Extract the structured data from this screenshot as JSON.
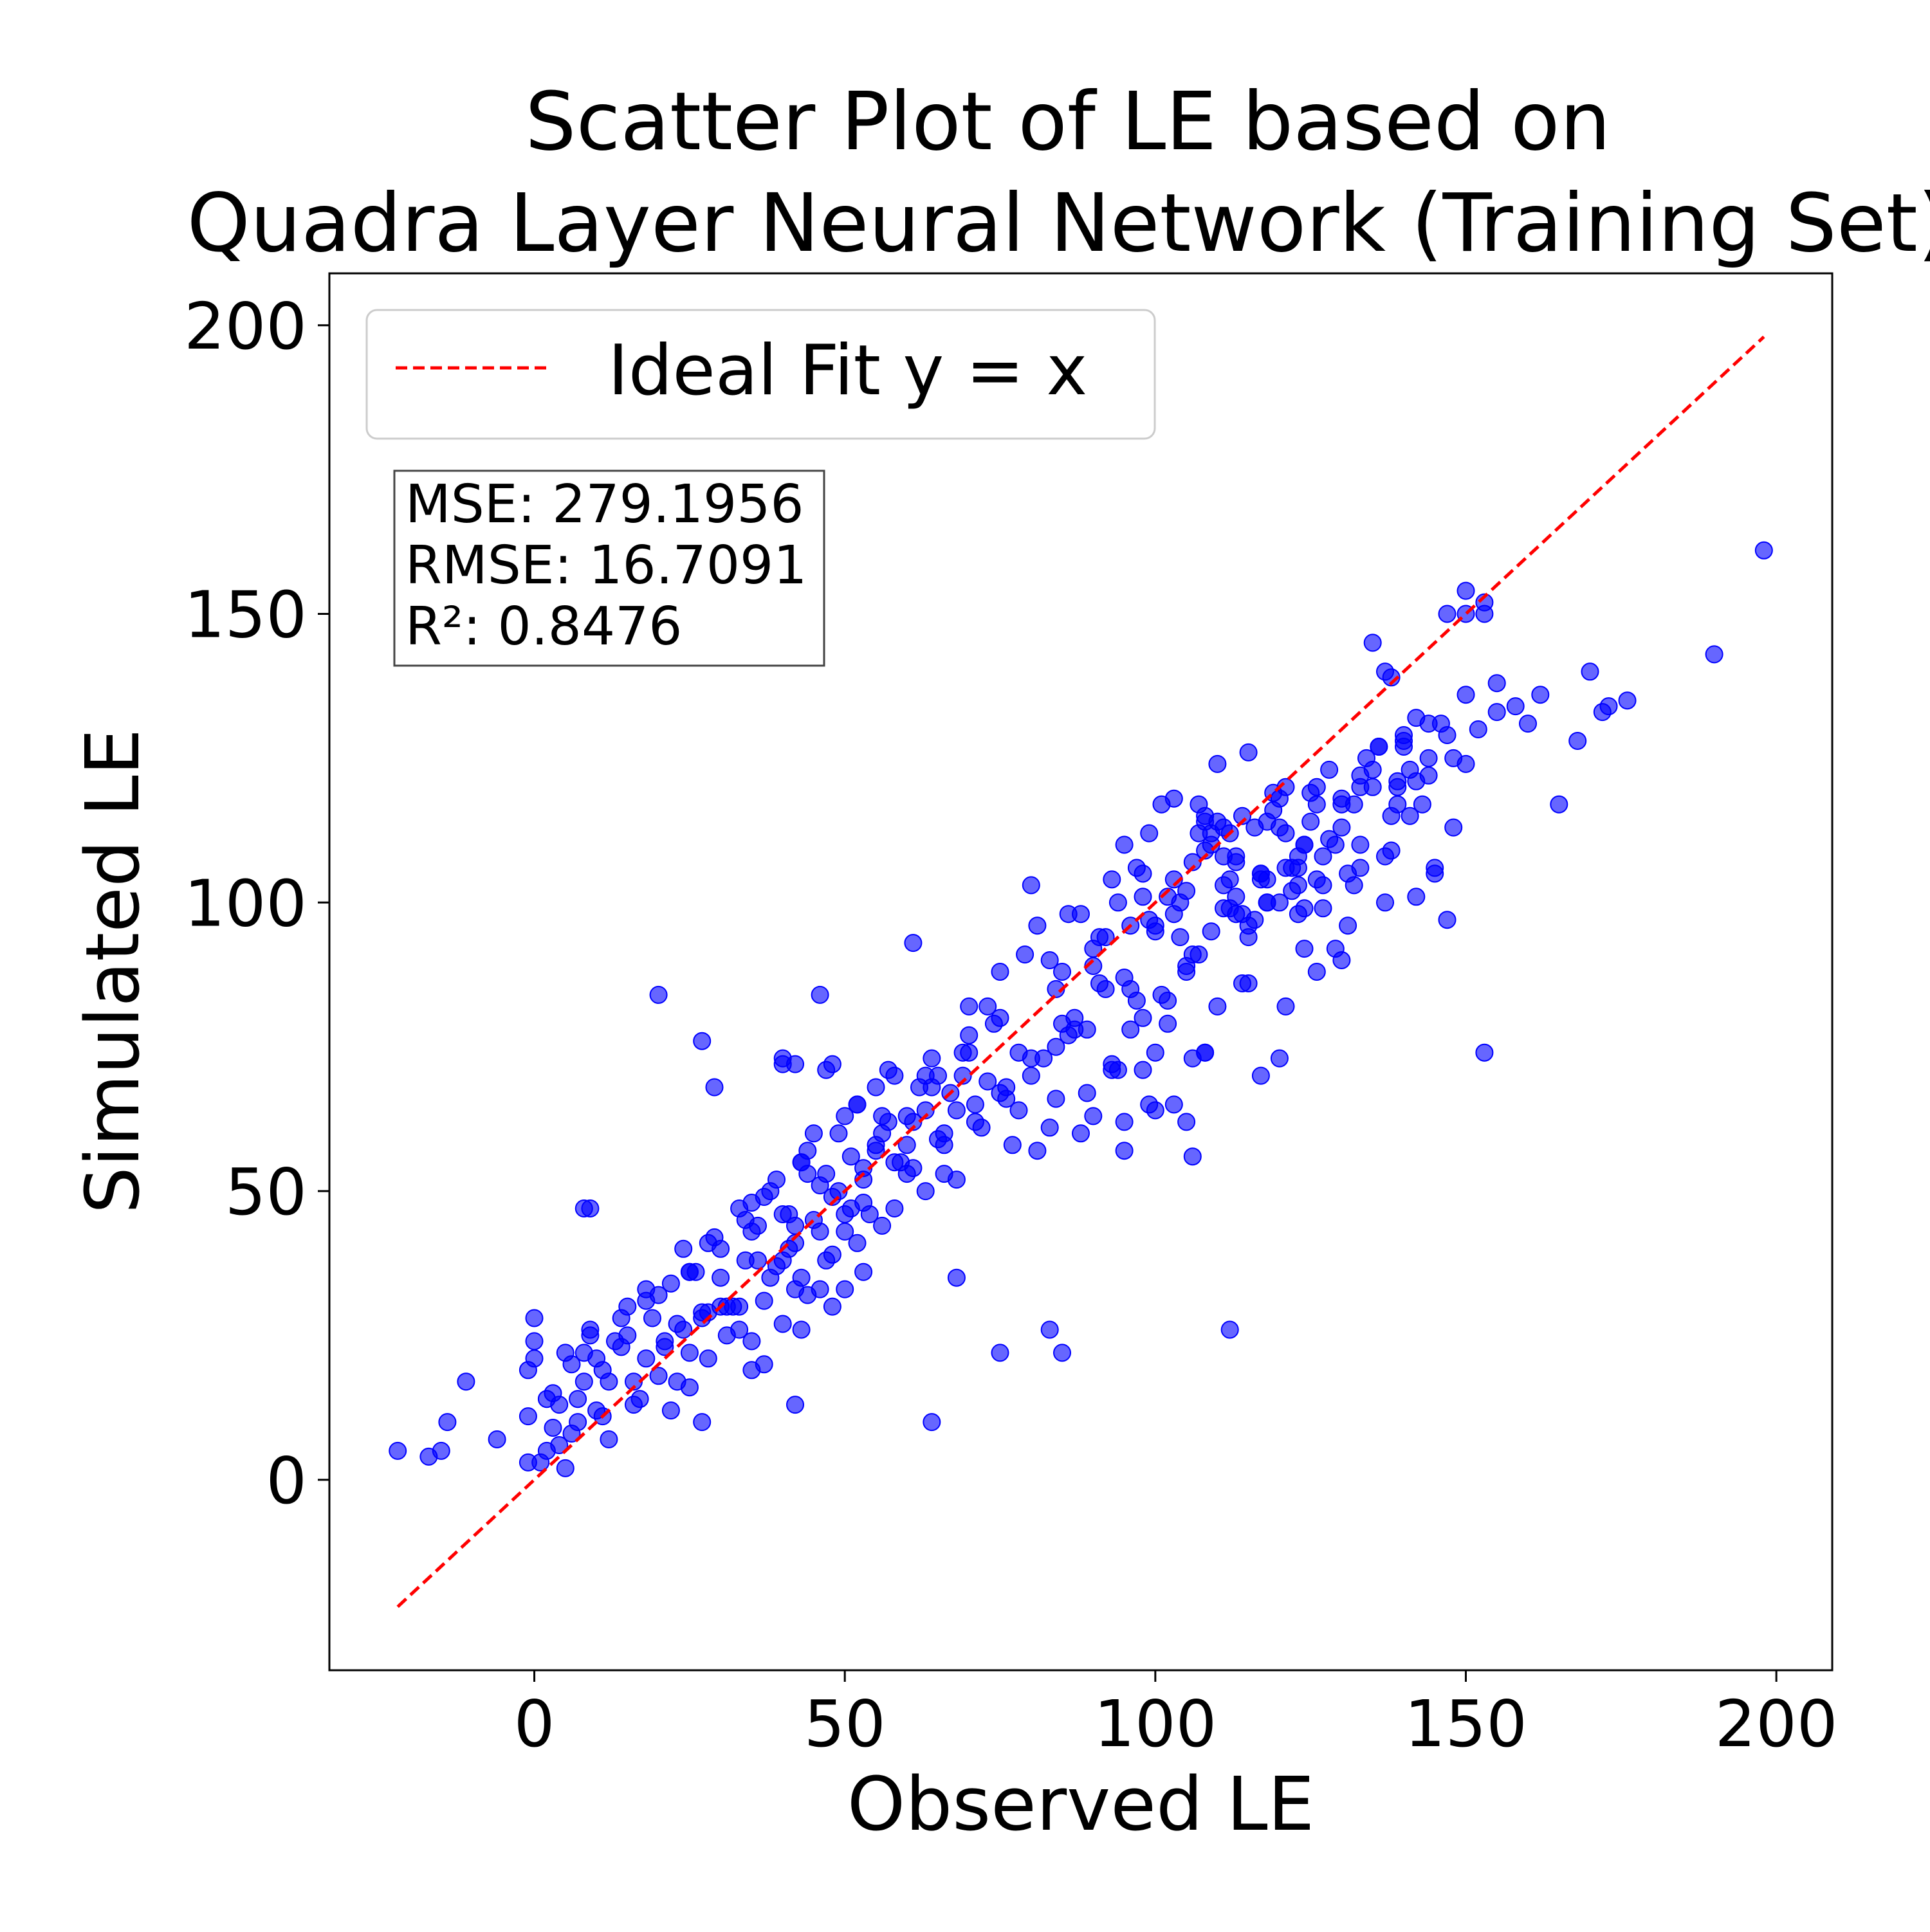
{
  "chart_data": {
    "type": "scatter",
    "title_lines": [
      "Scatter Plot of LE based on",
      "Quadra Layer Neural Network (Training Set)"
    ],
    "xlabel": "Observed LE",
    "ylabel": "Simulated LE",
    "xlim": [
      -33,
      209
    ],
    "ylim": [
      -33,
      209
    ],
    "xticks": [
      0,
      50,
      100,
      150,
      200
    ],
    "yticks": [
      0,
      50,
      100,
      150,
      200
    ],
    "xtick_labels": [
      "0",
      "50",
      "100",
      "150",
      "200"
    ],
    "ytick_labels": [
      "0",
      "50",
      "100",
      "150",
      "200"
    ],
    "grid": false,
    "legend": {
      "position": "top-left",
      "entries": [
        {
          "label": "Ideal Fit y = x",
          "color": "#ff0000",
          "style": "dashed"
        }
      ]
    },
    "stats_box": {
      "lines": [
        "MSE: 279.1956",
        "RMSE: 16.7091",
        "R²: 0.8476"
      ]
    },
    "ideal_line": {
      "x": [
        -22,
        198
      ],
      "y": [
        -22,
        198
      ],
      "color": "#ff0000"
    },
    "point_color": "#0000ff",
    "point_opacity": 0.6,
    "series": [
      {
        "x": [
          -22,
          -17,
          -15,
          -14,
          -11,
          -6,
          -1,
          -1,
          0,
          0,
          0,
          1,
          2,
          3,
          4,
          4,
          5,
          6,
          7,
          8,
          8,
          9,
          10,
          11,
          12,
          -1,
          2,
          5,
          7,
          9,
          12,
          14,
          15,
          17,
          18,
          20,
          22,
          24,
          25,
          27,
          3,
          6,
          9,
          11,
          14,
          16,
          18,
          21,
          23,
          25,
          28,
          30,
          33,
          35,
          10,
          13,
          16,
          19,
          22,
          25,
          28,
          31,
          34,
          37,
          40,
          43,
          46,
          15,
          18,
          21,
          24,
          27,
          30,
          33,
          36,
          39,
          42,
          45,
          48,
          51,
          20,
          23,
          26,
          29,
          32,
          35,
          38,
          41,
          44,
          47,
          50,
          53,
          56,
          25,
          28,
          31,
          34,
          37,
          40,
          43,
          46,
          49,
          52,
          55,
          58,
          61,
          30,
          33,
          36,
          39,
          42,
          45,
          48,
          51,
          54,
          57,
          60,
          63,
          66,
          35,
          38,
          41,
          44,
          47,
          50,
          53,
          56,
          59,
          62,
          65,
          68,
          71,
          40,
          43,
          46,
          49,
          52,
          55,
          58,
          61,
          64,
          67,
          70,
          73,
          76,
          8,
          20,
          27,
          29,
          40,
          42,
          46,
          47,
          48,
          52,
          57,
          61,
          60,
          63,
          66,
          69,
          72,
          75,
          78,
          81,
          84,
          87,
          90,
          93,
          65,
          68,
          71,
          74,
          77,
          80,
          83,
          86,
          89,
          92,
          95,
          98,
          70,
          73,
          76,
          79,
          82,
          85,
          88,
          91,
          94,
          97,
          100,
          103,
          75,
          78,
          81,
          84,
          87,
          90,
          93,
          96,
          99,
          102,
          105,
          108,
          80,
          83,
          86,
          89,
          92,
          95,
          98,
          101,
          104,
          107,
          110,
          113,
          85,
          88,
          91,
          94,
          97,
          100,
          103,
          106,
          109,
          112,
          115,
          118,
          90,
          93,
          96,
          99,
          102,
          105,
          108,
          111,
          114,
          117,
          120,
          123,
          95,
          98,
          101,
          104,
          107,
          110,
          113,
          116,
          119,
          122,
          125,
          128,
          100,
          103,
          106,
          109,
          112,
          115,
          118,
          121,
          124,
          127,
          130,
          133,
          105,
          108,
          111,
          114,
          117,
          120,
          123,
          126,
          129,
          132,
          135,
          138,
          110,
          113,
          116,
          119,
          122,
          125,
          128,
          131,
          134,
          137,
          140,
          143,
          115,
          118,
          121,
          124,
          127,
          130,
          133,
          136,
          139,
          142,
          145,
          148,
          120,
          123,
          126,
          129,
          132,
          135,
          138,
          141,
          144,
          147,
          150,
          153,
          135,
          137,
          140,
          142,
          144,
          146,
          147,
          150,
          153,
          155,
          158,
          150,
          155,
          160,
          162,
          165,
          168,
          170,
          172,
          173,
          176,
          190,
          198,
          139,
          144,
          147,
          148,
          145,
          150,
          152,
          60,
          64,
          70,
          75,
          80,
          84,
          53,
          55,
          58,
          63,
          66,
          69,
          95,
          98,
          100,
          103,
          106,
          111,
          140,
          138,
          153,
          121,
          130,
          40,
          42,
          44,
          50,
          53,
          56,
          64,
          68,
          75,
          83,
          85,
          112,
          27,
          37,
          42,
          50,
          35,
          43,
          48,
          106,
          107,
          108,
          109,
          113,
          117,
          124,
          126,
          131,
          133,
          137,
          141,
          112,
          115,
          118,
          121,
          124,
          127,
          130,
          133,
          136,
          139,
          142,
          96,
          99,
          102,
          105,
          108,
          111,
          114,
          117,
          120,
          123,
          126
        ],
        "y": [
          5,
          4,
          5,
          10,
          17,
          7,
          11,
          3,
          28,
          24,
          21,
          3,
          5,
          9,
          13,
          6,
          2,
          8,
          14,
          17,
          22,
          47,
          12,
          19,
          7,
          19,
          14,
          22,
          10,
          26,
          17,
          23,
          30,
          14,
          21,
          18,
          12,
          26,
          16,
          29,
          15,
          20,
          25,
          11,
          28,
          13,
          33,
          24,
          17,
          36,
          21,
          30,
          26,
          19,
          21,
          24,
          17,
          28,
          34,
          22,
          29,
          25,
          38,
          31,
          27,
          35,
          33,
          25,
          31,
          23,
          40,
          28,
          35,
          30,
          44,
          37,
          33,
          45,
          39,
          47,
          32,
          27,
          36,
          42,
          30,
          48,
          35,
          40,
          53,
          38,
          46,
          52,
          44,
          36,
          41,
          30,
          45,
          49,
          38,
          55,
          43,
          50,
          41,
          58,
          47,
          54,
          40,
          47,
          38,
          52,
          44,
          60,
          49,
          56,
          46,
          62,
          53,
          50,
          58,
          43,
          50,
          46,
          57,
          53,
          63,
          48,
          60,
          55,
          68,
          59,
          64,
          62,
          46,
          55,
          51,
          60,
          65,
          57,
          70,
          62,
          73,
          67,
          74,
          69,
          66,
          47,
          84,
          76,
          68,
          73,
          72,
          84,
          71,
          72,
          65,
          71,
          93,
          58,
          64,
          53,
          70,
          61,
          67,
          74,
          57,
          66,
          78,
          63,
          72,
          70,
          52,
          65,
          79,
          58,
          73,
          61,
          77,
          67,
          85,
          62,
          71,
          77,
          82,
          68,
          91,
          73,
          79,
          60,
          86,
          71,
          83,
          64,
          98,
          88,
          64,
          96,
          75,
          80,
          92,
          71,
          85,
          97,
          79,
          89,
          74,
          103,
          90,
          98,
          78,
          94,
          87,
          105,
          84,
          100,
          91,
          82,
          108,
          88,
          98,
          94,
          100,
          106,
          96,
          104,
          91,
          110,
          99,
          86,
          114,
          89,
          104,
          96,
          112,
          101,
          88,
          109,
          99,
          115,
          105,
          118,
          103,
          110,
          101,
          117,
          94,
          112,
          124,
          98,
          113,
          119,
          106,
          114,
          123,
          95,
          118,
          107,
          112,
          104,
          126,
          100,
          120,
          110,
          103,
          117,
          122,
          102,
          115,
          108,
          98,
          104,
          113,
          106,
          120,
          110,
          117,
          123,
          109,
          114,
          107,
          97,
          116,
          102,
          119,
          111,
          105,
          125,
          100,
          128,
          117,
          96,
          104,
          112,
          99,
          108,
          118,
          110,
          127,
          121,
          101,
          106,
          113,
          100,
          108,
          117,
          92,
          103,
          120,
          115,
          123,
          125,
          129,
          154,
          150,
          145,
          140,
          129,
          132,
          131,
          131,
          150,
          136,
          152,
          138,
          134,
          124,
          133,
          131,
          136,
          117,
          128,
          140,
          133,
          134,
          135,
          143,
          161,
          120,
          122,
          97,
          125,
          105,
          150,
          130,
          63,
          68,
          82,
          80,
          70,
          85,
          54,
          68,
          55,
          70,
          60,
          74,
          57,
          80,
          74,
          65,
          56,
          113,
          127,
          139,
          74,
          82,
          90,
          72,
          41,
          32,
          43,
          36,
          63,
          10,
          35,
          22,
          26,
          22,
          26,
          10,
          20,
          13,
          33,
          24,
          26,
          30,
          73,
          117,
          114,
          95,
          101,
          70,
          92,
          104,
          96,
          106,
          108,
          115,
          112,
          94,
          100,
          106,
          110,
          99,
          113,
          120,
          127,
          117,
          121,
          78,
          65,
          83,
          62,
          74,
          103,
          86,
          105,
          73,
          98,
          88
        ]
      }
    ]
  }
}
